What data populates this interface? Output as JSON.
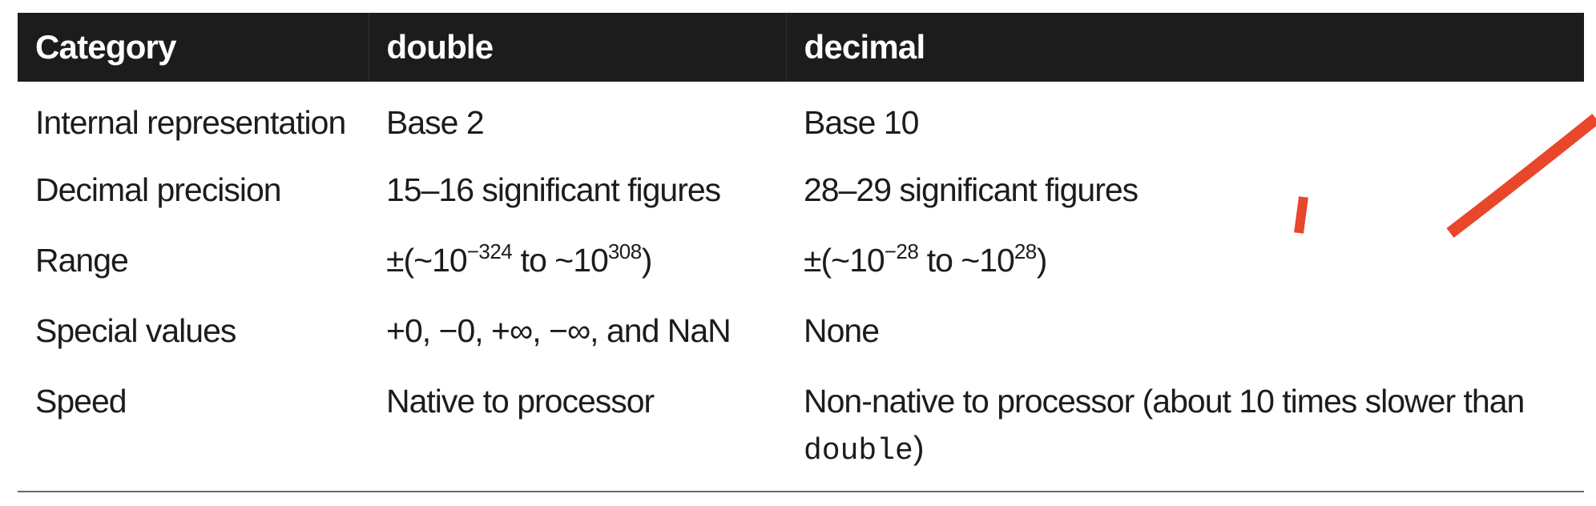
{
  "table": {
    "headers": [
      "Category",
      "double",
      "decimal"
    ],
    "rows": [
      {
        "category": "Internal representation",
        "double": "Base 2",
        "decimal": "Base 10"
      },
      {
        "category": "Decimal precision",
        "double": "15–16 significant figures",
        "decimal": "28–29 significant figures"
      },
      {
        "category": "Range",
        "double": {
          "prefix": "±(~10",
          "exp1": "−324",
          "middle": " to ~10",
          "exp2": "308",
          "suffix": ")"
        },
        "decimal": {
          "prefix": "±(~10",
          "exp1": "−28",
          "middle": " to ~10",
          "exp2": "28",
          "suffix": ")"
        }
      },
      {
        "category": "Special values",
        "double": "+0, −0, +∞, −∞, and NaN",
        "decimal": "None"
      },
      {
        "category": "Speed",
        "double": "Native to processor",
        "decimal": {
          "text": "Non-native to processor (about 10 times slower than ",
          "code": "double",
          "suffix": ")"
        }
      }
    ]
  },
  "annotation": {
    "color": "#e8472c"
  }
}
